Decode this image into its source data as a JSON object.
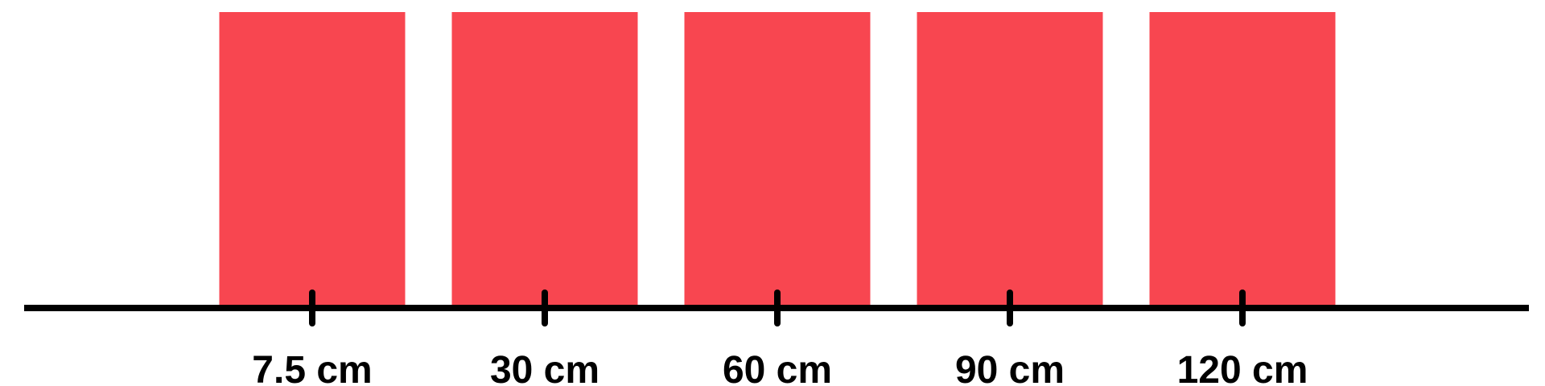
{
  "chart_data": {
    "type": "bar",
    "categories": [
      "7.5 cm",
      "30 cm",
      "60 cm",
      "90 cm",
      "120 cm"
    ],
    "values": [
      1,
      1,
      1,
      1,
      1
    ],
    "title": "",
    "xlabel": "",
    "ylabel": "",
    "grid": false,
    "legend": "none",
    "colors": {
      "bar": "#F84650",
      "axis": "#000000",
      "text": "#000000",
      "background": "#FFFFFF"
    }
  }
}
